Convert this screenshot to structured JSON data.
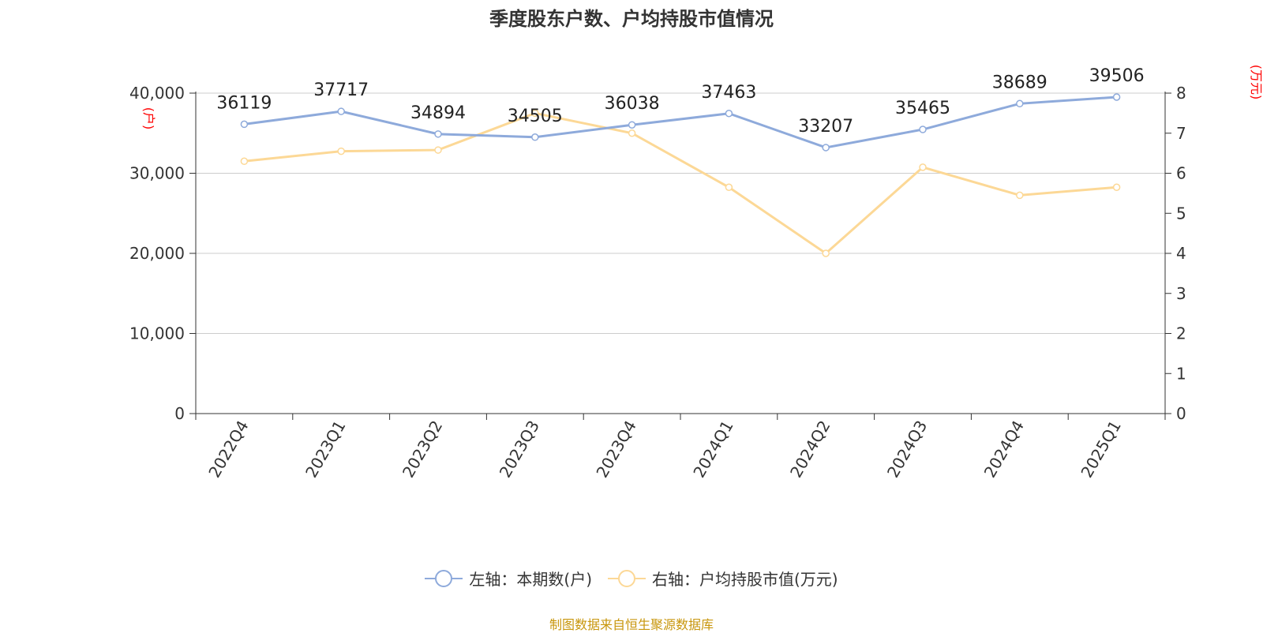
{
  "title": "季度股东户数、户均持股市值情况",
  "source": "制图数据来自恒生聚源数据库",
  "legend": [
    {
      "label": "左轴：本期数(户)",
      "color": "#8eaadb"
    },
    {
      "label": "右轴：户均持股市值(万元)",
      "color": "#fcd896"
    }
  ],
  "chart_data": {
    "type": "line",
    "categories": [
      "2022Q4",
      "2023Q1",
      "2023Q2",
      "2023Q3",
      "2023Q4",
      "2024Q1",
      "2024Q2",
      "2024Q3",
      "2024Q4",
      "2025Q1"
    ],
    "series": [
      {
        "name": "左轴：本期数(户)",
        "axis": "left",
        "color": "#8eaadb",
        "values": [
          36119,
          37717,
          34894,
          34505,
          36038,
          37463,
          33207,
          35465,
          38689,
          39506
        ],
        "show_labels": true
      },
      {
        "name": "右轴：户均持股市值(万元)",
        "axis": "right",
        "color": "#fcd896",
        "values": [
          6.3,
          6.55,
          6.58,
          7.5,
          7.0,
          5.65,
          4.0,
          6.15,
          5.45,
          5.65
        ],
        "show_labels": false
      }
    ],
    "y_left": {
      "label": "(户)",
      "ticks": [
        "0",
        "10,000",
        "20,000",
        "30,000",
        "40,000"
      ],
      "min": 0,
      "max": 40000
    },
    "y_right": {
      "label": "(万元)",
      "ticks": [
        "0",
        "1",
        "2",
        "3",
        "4",
        "5",
        "6",
        "7",
        "8"
      ],
      "min": 0,
      "max": 8
    },
    "grid": true,
    "legend_position": "bottom"
  }
}
